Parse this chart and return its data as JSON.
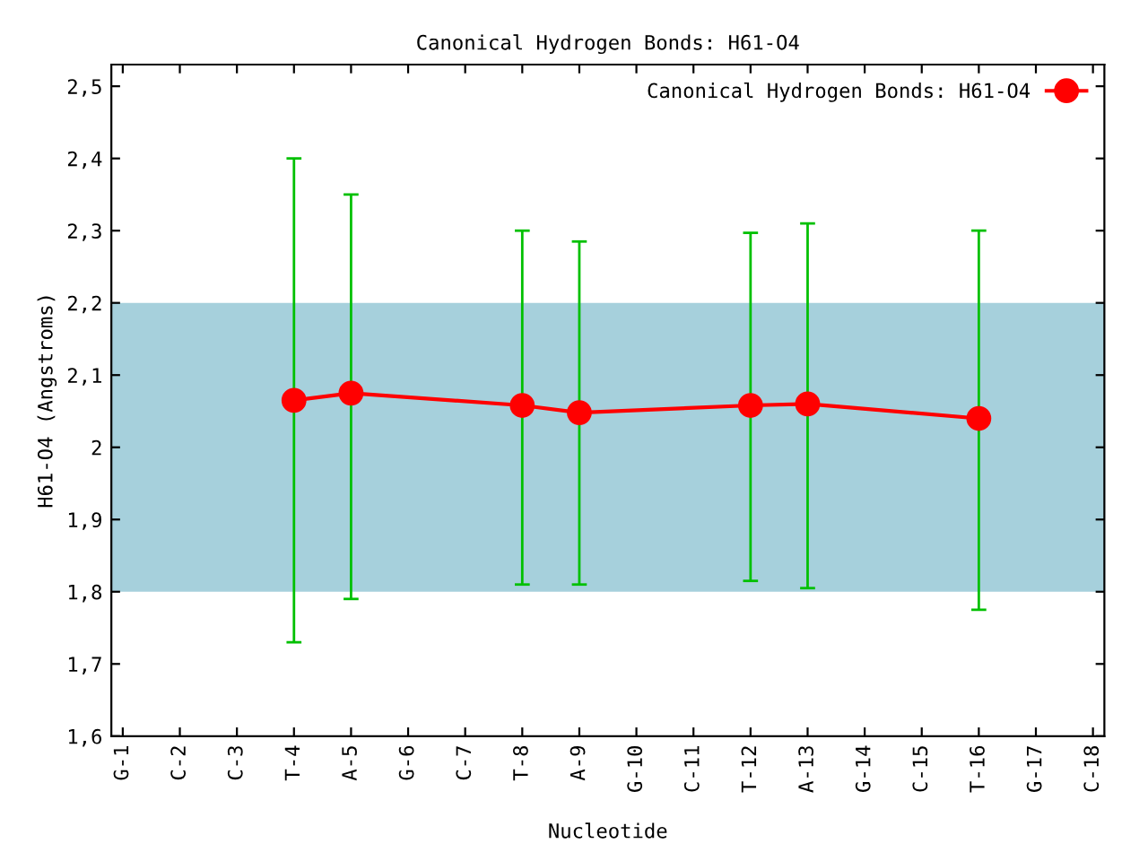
{
  "chart_data": {
    "type": "line",
    "title": "Canonical Hydrogen Bonds: H61-O4",
    "xlabel": "Nucleotide",
    "ylabel": "H61-O4 (Angstroms)",
    "categories": [
      "G-1",
      "C-2",
      "C-3",
      "T-4",
      "A-5",
      "G-6",
      "C-7",
      "T-8",
      "A-9",
      "G-10",
      "C-11",
      "T-12",
      "A-13",
      "G-14",
      "C-15",
      "T-16",
      "G-17",
      "C-18"
    ],
    "series": [
      {
        "name": "Canonical Hydrogen Bonds: H61-O4",
        "color": "#ff0000",
        "values": [
          null,
          null,
          null,
          2.065,
          2.075,
          null,
          null,
          2.058,
          2.048,
          null,
          null,
          2.058,
          2.06,
          null,
          null,
          2.04,
          null,
          null
        ],
        "errors": [
          null,
          null,
          null,
          [
            1.73,
            2.4
          ],
          [
            1.79,
            2.35
          ],
          null,
          null,
          [
            1.81,
            2.3
          ],
          [
            1.81,
            2.285
          ],
          null,
          null,
          [
            1.815,
            2.297
          ],
          [
            1.805,
            2.31
          ],
          null,
          null,
          [
            1.775,
            2.3
          ],
          null,
          null
        ]
      }
    ],
    "ylim": [
      1.6,
      2.53
    ],
    "yticks": [
      {
        "value": 1.6,
        "label": "1,6"
      },
      {
        "value": 1.7,
        "label": "1,7"
      },
      {
        "value": 1.8,
        "label": "1,8"
      },
      {
        "value": 1.9,
        "label": "1,9"
      },
      {
        "value": 2,
        "label": "2"
      },
      {
        "value": 2.1,
        "label": "2,1"
      },
      {
        "value": 2.2,
        "label": "2,2"
      },
      {
        "value": 2.3,
        "label": "2,3"
      },
      {
        "value": 2.4,
        "label": "2,4"
      },
      {
        "value": 2.5,
        "label": "2,5"
      }
    ],
    "bands": [
      {
        "axis": "y",
        "from": 1.8,
        "to": 2.2,
        "color": "#a6d0dc"
      }
    ],
    "marker": "circle",
    "line_style": "solid",
    "legend": "top right",
    "grid": false
  }
}
